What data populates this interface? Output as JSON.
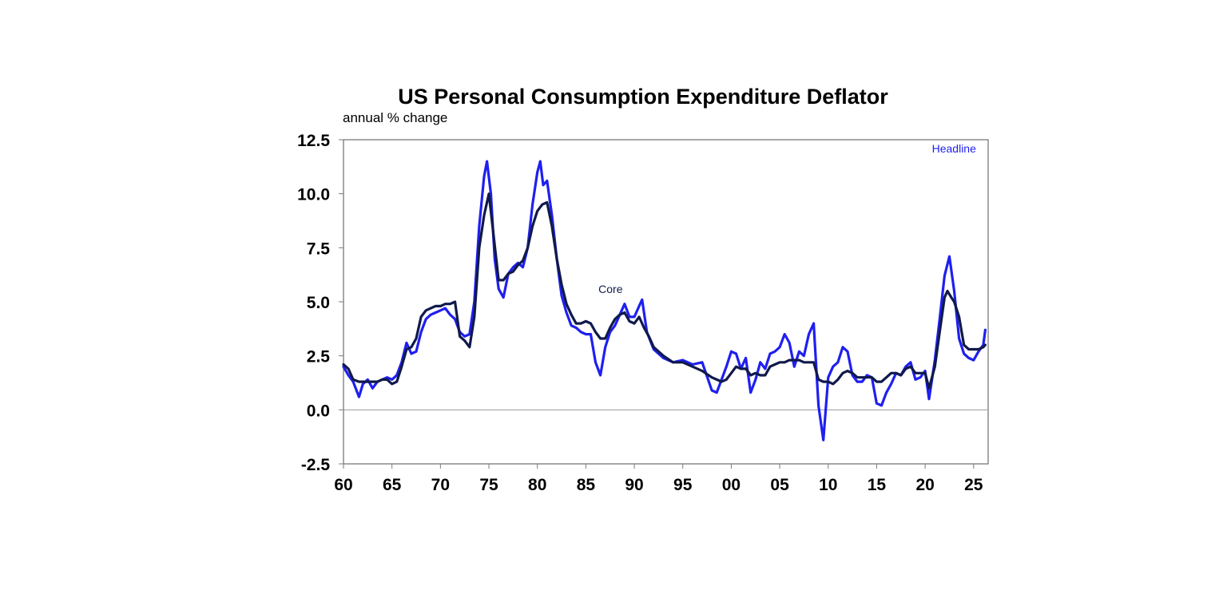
{
  "chart_data": {
    "type": "line",
    "title": "US Personal Consumption Expenditure Deflator",
    "subtitle": "annual % change",
    "xlim": [
      1960,
      2026.5
    ],
    "ylim": [
      -2.5,
      12.5
    ],
    "x_tick_values": [
      1960,
      1965,
      1970,
      1975,
      1980,
      1985,
      1990,
      1995,
      2000,
      2005,
      2010,
      2015,
      2020,
      2025
    ],
    "x_tick_labels": [
      "60",
      "65",
      "70",
      "75",
      "80",
      "85",
      "90",
      "95",
      "00",
      "05",
      "10",
      "15",
      "20",
      "25"
    ],
    "y_tick_values": [
      -2.5,
      0,
      2.5,
      5,
      7.5,
      10,
      12.5
    ],
    "y_tick_labels": [
      "-2.5",
      "0.0",
      "2.5",
      "5.0",
      "7.5",
      "10.0",
      "12.5"
    ],
    "zero_line": true,
    "grid": false,
    "annotations": [
      {
        "text": "Headline",
        "series": "Headline",
        "x": 2020.7,
        "y": 11.9
      },
      {
        "text": "Core",
        "series": "Core",
        "x": 1986.3,
        "y": 5.4
      }
    ],
    "series": [
      {
        "name": "Headline",
        "color": "#1f1ff0",
        "points": [
          [
            1960,
            2.0
          ],
          [
            1960.5,
            1.6
          ],
          [
            1961,
            1.3
          ],
          [
            1961.6,
            0.6
          ],
          [
            1962,
            1.2
          ],
          [
            1962.5,
            1.4
          ],
          [
            1963,
            1.0
          ],
          [
            1963.5,
            1.3
          ],
          [
            1964,
            1.4
          ],
          [
            1964.5,
            1.5
          ],
          [
            1965,
            1.4
          ],
          [
            1965.5,
            1.6
          ],
          [
            1966,
            2.2
          ],
          [
            1966.5,
            3.1
          ],
          [
            1967,
            2.6
          ],
          [
            1967.5,
            2.7
          ],
          [
            1968,
            3.6
          ],
          [
            1968.5,
            4.2
          ],
          [
            1969,
            4.4
          ],
          [
            1969.5,
            4.5
          ],
          [
            1970,
            4.6
          ],
          [
            1970.5,
            4.7
          ],
          [
            1971,
            4.4
          ],
          [
            1971.5,
            4.2
          ],
          [
            1972,
            3.6
          ],
          [
            1972.5,
            3.4
          ],
          [
            1973,
            3.5
          ],
          [
            1973.5,
            5.0
          ],
          [
            1974,
            8.5
          ],
          [
            1974.5,
            10.8
          ],
          [
            1974.8,
            11.5
          ],
          [
            1975.2,
            10.0
          ],
          [
            1975.6,
            7.0
          ],
          [
            1976,
            5.6
          ],
          [
            1976.5,
            5.2
          ],
          [
            1977,
            6.3
          ],
          [
            1977.5,
            6.6
          ],
          [
            1978,
            6.8
          ],
          [
            1978.5,
            6.6
          ],
          [
            1979,
            7.5
          ],
          [
            1979.5,
            9.5
          ],
          [
            1980,
            11.0
          ],
          [
            1980.3,
            11.5
          ],
          [
            1980.6,
            10.4
          ],
          [
            1981,
            10.6
          ],
          [
            1981.5,
            9.0
          ],
          [
            1982,
            7.0
          ],
          [
            1982.5,
            5.3
          ],
          [
            1983,
            4.5
          ],
          [
            1983.5,
            3.9
          ],
          [
            1984,
            3.8
          ],
          [
            1984.5,
            3.6
          ],
          [
            1985,
            3.5
          ],
          [
            1985.5,
            3.5
          ],
          [
            1986,
            2.2
          ],
          [
            1986.5,
            1.6
          ],
          [
            1987,
            2.9
          ],
          [
            1987.5,
            3.6
          ],
          [
            1988,
            3.9
          ],
          [
            1988.5,
            4.4
          ],
          [
            1989,
            4.9
          ],
          [
            1989.5,
            4.3
          ],
          [
            1990,
            4.3
          ],
          [
            1990.5,
            4.8
          ],
          [
            1990.8,
            5.1
          ],
          [
            1991.3,
            3.6
          ],
          [
            1992,
            2.8
          ],
          [
            1993,
            2.4
          ],
          [
            1994,
            2.2
          ],
          [
            1995,
            2.3
          ],
          [
            1996,
            2.1
          ],
          [
            1997,
            2.2
          ],
          [
            1998,
            0.9
          ],
          [
            1998.5,
            0.8
          ],
          [
            1999,
            1.4
          ],
          [
            1999.5,
            2.0
          ],
          [
            2000,
            2.7
          ],
          [
            2000.5,
            2.6
          ],
          [
            2001,
            1.9
          ],
          [
            2001.5,
            2.4
          ],
          [
            2002,
            0.8
          ],
          [
            2002.5,
            1.4
          ],
          [
            2003,
            2.2
          ],
          [
            2003.5,
            1.9
          ],
          [
            2004,
            2.6
          ],
          [
            2004.5,
            2.7
          ],
          [
            2005,
            2.9
          ],
          [
            2005.5,
            3.5
          ],
          [
            2006,
            3.1
          ],
          [
            2006.5,
            2.0
          ],
          [
            2007,
            2.7
          ],
          [
            2007.5,
            2.5
          ],
          [
            2008,
            3.5
          ],
          [
            2008.5,
            4.0
          ],
          [
            2009,
            0.2
          ],
          [
            2009.5,
            -1.4
          ],
          [
            2010,
            1.5
          ],
          [
            2010.5,
            2.0
          ],
          [
            2011,
            2.2
          ],
          [
            2011.5,
            2.9
          ],
          [
            2012,
            2.7
          ],
          [
            2012.5,
            1.6
          ],
          [
            2013,
            1.3
          ],
          [
            2013.5,
            1.3
          ],
          [
            2014,
            1.6
          ],
          [
            2014.5,
            1.5
          ],
          [
            2015,
            0.3
          ],
          [
            2015.5,
            0.2
          ],
          [
            2016,
            0.8
          ],
          [
            2016.5,
            1.2
          ],
          [
            2017,
            1.7
          ],
          [
            2017.5,
            1.6
          ],
          [
            2018,
            2.0
          ],
          [
            2018.5,
            2.2
          ],
          [
            2019,
            1.4
          ],
          [
            2019.5,
            1.5
          ],
          [
            2020,
            1.8
          ],
          [
            2020.4,
            0.5
          ],
          [
            2021,
            2.3
          ],
          [
            2021.5,
            4.2
          ],
          [
            2022,
            6.2
          ],
          [
            2022.5,
            7.1
          ],
          [
            2023,
            5.5
          ],
          [
            2023.5,
            3.3
          ],
          [
            2024,
            2.6
          ],
          [
            2024.5,
            2.4
          ],
          [
            2025,
            2.3
          ],
          [
            2025.5,
            2.7
          ],
          [
            2026,
            3.0
          ],
          [
            2026.2,
            3.7
          ]
        ]
      },
      {
        "name": "Core",
        "color": "#101a4a",
        "points": [
          [
            1960,
            2.1
          ],
          [
            1960.5,
            1.9
          ],
          [
            1961,
            1.4
          ],
          [
            1961.6,
            1.3
          ],
          [
            1962,
            1.3
          ],
          [
            1962.5,
            1.3
          ],
          [
            1963,
            1.3
          ],
          [
            1963.5,
            1.3
          ],
          [
            1964,
            1.4
          ],
          [
            1964.5,
            1.4
          ],
          [
            1965,
            1.2
          ],
          [
            1965.5,
            1.3
          ],
          [
            1966,
            2.0
          ],
          [
            1966.5,
            2.8
          ],
          [
            1967,
            2.9
          ],
          [
            1967.5,
            3.3
          ],
          [
            1968,
            4.3
          ],
          [
            1968.5,
            4.6
          ],
          [
            1969,
            4.7
          ],
          [
            1969.5,
            4.8
          ],
          [
            1970,
            4.8
          ],
          [
            1970.5,
            4.9
          ],
          [
            1971,
            4.9
          ],
          [
            1971.5,
            5.0
          ],
          [
            1972,
            3.4
          ],
          [
            1972.5,
            3.2
          ],
          [
            1973,
            2.9
          ],
          [
            1973.5,
            4.3
          ],
          [
            1974,
            7.5
          ],
          [
            1974.5,
            9.0
          ],
          [
            1975,
            10.0
          ],
          [
            1975.5,
            8.0
          ],
          [
            1976,
            6.0
          ],
          [
            1976.5,
            6.0
          ],
          [
            1977,
            6.3
          ],
          [
            1977.5,
            6.4
          ],
          [
            1978,
            6.7
          ],
          [
            1978.5,
            6.9
          ],
          [
            1979,
            7.5
          ],
          [
            1979.5,
            8.5
          ],
          [
            1980,
            9.2
          ],
          [
            1980.5,
            9.5
          ],
          [
            1981,
            9.6
          ],
          [
            1981.5,
            8.5
          ],
          [
            1982,
            7.0
          ],
          [
            1982.5,
            5.8
          ],
          [
            1983,
            4.9
          ],
          [
            1983.5,
            4.4
          ],
          [
            1984,
            4.0
          ],
          [
            1984.5,
            4.0
          ],
          [
            1985,
            4.1
          ],
          [
            1985.5,
            4.0
          ],
          [
            1986,
            3.6
          ],
          [
            1986.5,
            3.3
          ],
          [
            1987,
            3.3
          ],
          [
            1987.5,
            3.8
          ],
          [
            1988,
            4.2
          ],
          [
            1988.5,
            4.4
          ],
          [
            1989,
            4.5
          ],
          [
            1989.5,
            4.1
          ],
          [
            1990,
            4.0
          ],
          [
            1990.5,
            4.3
          ],
          [
            1991,
            3.8
          ],
          [
            1991.5,
            3.4
          ],
          [
            1992,
            2.9
          ],
          [
            1993,
            2.5
          ],
          [
            1994,
            2.2
          ],
          [
            1995,
            2.2
          ],
          [
            1996,
            2.0
          ],
          [
            1997,
            1.8
          ],
          [
            1998,
            1.5
          ],
          [
            1998.5,
            1.4
          ],
          [
            1999,
            1.3
          ],
          [
            1999.5,
            1.4
          ],
          [
            2000,
            1.7
          ],
          [
            2000.5,
            2.0
          ],
          [
            2001,
            1.9
          ],
          [
            2001.5,
            1.9
          ],
          [
            2002,
            1.6
          ],
          [
            2002.5,
            1.7
          ],
          [
            2003,
            1.6
          ],
          [
            2003.5,
            1.6
          ],
          [
            2004,
            2.0
          ],
          [
            2004.5,
            2.1
          ],
          [
            2005,
            2.2
          ],
          [
            2005.5,
            2.2
          ],
          [
            2006,
            2.3
          ],
          [
            2006.5,
            2.3
          ],
          [
            2007,
            2.3
          ],
          [
            2007.5,
            2.2
          ],
          [
            2008,
            2.2
          ],
          [
            2008.5,
            2.2
          ],
          [
            2009,
            1.4
          ],
          [
            2009.5,
            1.3
          ],
          [
            2010,
            1.3
          ],
          [
            2010.5,
            1.2
          ],
          [
            2011,
            1.4
          ],
          [
            2011.5,
            1.7
          ],
          [
            2012,
            1.8
          ],
          [
            2012.5,
            1.7
          ],
          [
            2013,
            1.5
          ],
          [
            2013.5,
            1.5
          ],
          [
            2014,
            1.5
          ],
          [
            2014.5,
            1.5
          ],
          [
            2015,
            1.3
          ],
          [
            2015.5,
            1.3
          ],
          [
            2016,
            1.5
          ],
          [
            2016.5,
            1.7
          ],
          [
            2017,
            1.7
          ],
          [
            2017.5,
            1.6
          ],
          [
            2018,
            1.9
          ],
          [
            2018.5,
            2.0
          ],
          [
            2019,
            1.7
          ],
          [
            2019.5,
            1.7
          ],
          [
            2020,
            1.7
          ],
          [
            2020.4,
            1.0
          ],
          [
            2021,
            2.0
          ],
          [
            2021.5,
            3.6
          ],
          [
            2022,
            5.2
          ],
          [
            2022.3,
            5.5
          ],
          [
            2022.7,
            5.2
          ],
          [
            2023,
            5.0
          ],
          [
            2023.5,
            4.3
          ],
          [
            2024,
            3.0
          ],
          [
            2024.5,
            2.8
          ],
          [
            2025,
            2.8
          ],
          [
            2025.5,
            2.8
          ],
          [
            2026,
            2.9
          ],
          [
            2026.2,
            3.0
          ]
        ]
      }
    ]
  }
}
